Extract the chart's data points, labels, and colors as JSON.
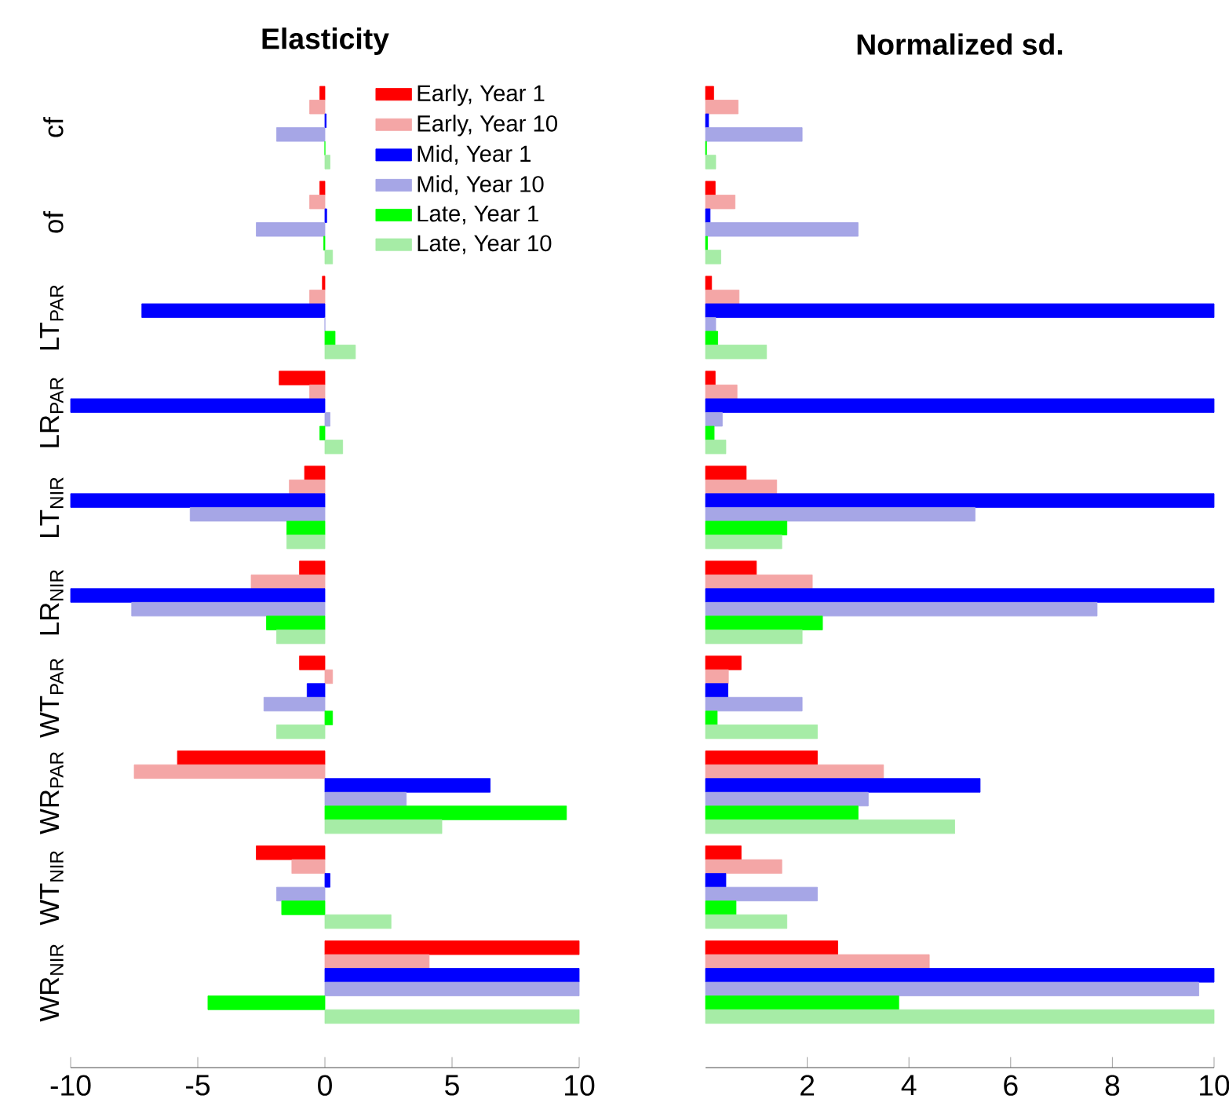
{
  "chart_data": [
    {
      "type": "bar",
      "orientation": "horizontal",
      "title": "Elasticity",
      "categories": [
        "cf",
        "of",
        "LT$_{PAR}$",
        "LR$_{PAR}$",
        "LT$_{NIR}$",
        "LR$_{NIR}$",
        "WT$_{PAR}$",
        "WR$_{PAR}$",
        "WT$_{NIR}$",
        "WR$_{NIR}$"
      ],
      "series": [
        {
          "name": "Early, Year 1",
          "color": "#ff0000",
          "values": [
            -0.2,
            -0.2,
            -0.1,
            -1.8,
            -0.8,
            -1.0,
            -1.0,
            -5.8,
            -2.7,
            10
          ]
        },
        {
          "name": "Early, Year 10",
          "color": "#f4a6a6",
          "values": [
            -0.6,
            -0.6,
            -0.6,
            -0.6,
            -1.4,
            -2.9,
            0.3,
            -7.5,
            -1.3,
            4.1
          ]
        },
        {
          "name": "Mid, Year 1",
          "color": "#0000ff",
          "values": [
            0.05,
            0.07,
            -7.2,
            -10,
            -10,
            -10,
            -0.7,
            6.5,
            0.2,
            10
          ]
        },
        {
          "name": "Mid, Year 10",
          "color": "#a6a6e6",
          "values": [
            -1.9,
            -2.7,
            0.0,
            0.2,
            -5.3,
            -7.6,
            -2.4,
            3.2,
            -1.9,
            10
          ]
        },
        {
          "name": "Late, Year 1",
          "color": "#00ff00",
          "values": [
            0.0,
            -0.05,
            0.4,
            -0.2,
            -1.5,
            -2.3,
            0.3,
            9.5,
            -1.7,
            -4.6
          ]
        },
        {
          "name": "Late, Year 10",
          "color": "#a6eca6",
          "values": [
            0.2,
            0.3,
            1.2,
            0.7,
            -1.5,
            -1.9,
            -1.9,
            4.6,
            2.6,
            10
          ]
        }
      ],
      "xlim": [
        -10,
        10
      ],
      "xticks": [
        -10,
        -5,
        0,
        5,
        10
      ],
      "legend": "top right"
    },
    {
      "type": "bar",
      "orientation": "horizontal",
      "title": "Normalized sd.",
      "categories": [
        null,
        null,
        null,
        null,
        null,
        null,
        null,
        null,
        null,
        null
      ],
      "series": [
        {
          "color": "#ff0000",
          "values": [
            0.16,
            0.19,
            0.12,
            0.19,
            0.8,
            1.0,
            0.7,
            2.2,
            0.7,
            2.6
          ]
        },
        {
          "color": "#f4a6a6",
          "values": [
            0.64,
            0.58,
            0.66,
            0.62,
            1.4,
            2.1,
            0.45,
            3.5,
            1.5,
            4.4
          ]
        },
        {
          "color": "#0000ff",
          "values": [
            0.06,
            0.09,
            10,
            10,
            10,
            10,
            0.44,
            5.4,
            0.4,
            10
          ]
        },
        {
          "color": "#a6a6e6",
          "values": [
            1.9,
            3.0,
            0.2,
            0.33,
            5.3,
            7.7,
            1.9,
            3.2,
            2.2,
            9.7
          ]
        },
        {
          "color": "#00ff00",
          "values": [
            0.02,
            0.04,
            0.24,
            0.17,
            1.6,
            2.3,
            0.23,
            3.0,
            0.6,
            3.8
          ]
        },
        {
          "color": "#a6eca6",
          "values": [
            0.2,
            0.3,
            1.2,
            0.4,
            1.5,
            1.9,
            2.2,
            4.9,
            1.6,
            10
          ]
        }
      ],
      "xlim": [
        0,
        10
      ],
      "xticks": [
        2,
        4,
        6,
        8,
        10
      ]
    }
  ]
}
